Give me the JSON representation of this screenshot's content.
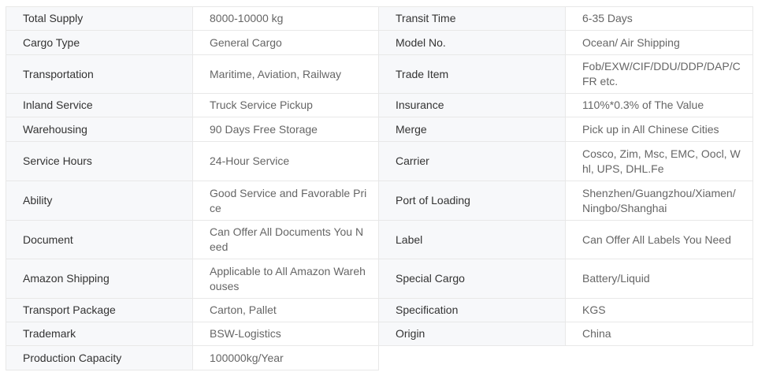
{
  "rows": [
    {
      "l1": "Total Supply",
      "v1": "8000-10000 kg",
      "l2": "Transit Time",
      "v2": "6-35 Days"
    },
    {
      "l1": "Cargo Type",
      "v1": "General Cargo",
      "l2": "Model No.",
      "v2": "Ocean/ Air Shipping"
    },
    {
      "l1": "Transportation",
      "v1": "Maritime, Aviation, Railway",
      "l2": "Trade Item",
      "v2": "Fob/EXW/CIF/DDU/DDP/DAP/CFR etc."
    },
    {
      "l1": "Inland Service",
      "v1": "Truck Service Pickup",
      "l2": "Insurance",
      "v2": "110%*0.3% of The Value"
    },
    {
      "l1": "Warehousing",
      "v1": "90 Days Free Storage",
      "l2": "Merge",
      "v2": "Pick up in All Chinese Cities"
    },
    {
      "l1": "Service Hours",
      "v1": "24-Hour Service",
      "l2": "Carrier",
      "v2": "Cosco, Zim, Msc, EMC, Oocl, Whl, UPS, DHL.Fe"
    },
    {
      "l1": "Ability",
      "v1": "Good Service and Favorable Price",
      "l2": "Port of Loading",
      "v2": "Shenzhen/Guangzhou/Xiamen/Ningbo/Shanghai"
    },
    {
      "l1": "Document",
      "v1": "Can Offer All Documents You Need",
      "l2": "Label",
      "v2": "Can Offer All Labels You Need"
    },
    {
      "l1": "Amazon Shipping",
      "v1": "Applicable to All Amazon Warehouses",
      "l2": "Special Cargo",
      "v2": "Battery/Liquid"
    },
    {
      "l1": "Transport Package",
      "v1": "Carton, Pallet",
      "l2": "Specification",
      "v2": "KGS"
    },
    {
      "l1": "Trademark",
      "v1": "BSW-Logistics",
      "l2": "Origin",
      "v2": "China"
    },
    {
      "l1": "Production Capacity",
      "v1": "100000kg/Year"
    }
  ]
}
